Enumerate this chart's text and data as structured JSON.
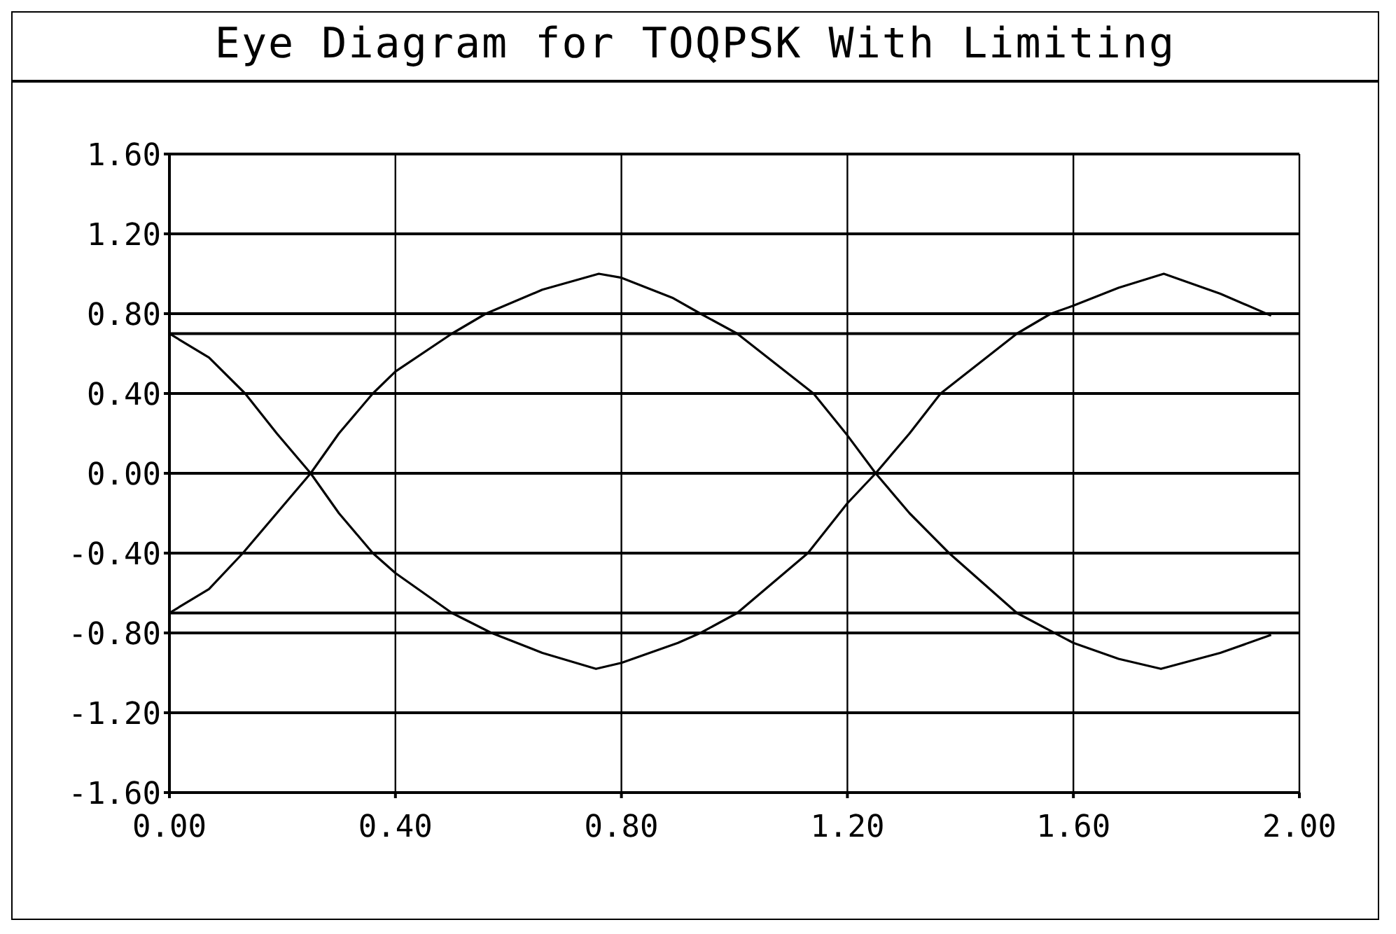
{
  "chart_data": {
    "type": "line",
    "title": "Eye Diagram for TOQPSK With Limiting",
    "xlim": [
      0,
      2
    ],
    "xticks": [
      {
        "value": 0,
        "label": "0.00"
      },
      {
        "value": 0.4,
        "label": "0.40"
      },
      {
        "value": 0.8,
        "label": "0.80"
      },
      {
        "value": 1.2,
        "label": "1.20"
      },
      {
        "value": 1.6,
        "label": "1.60"
      },
      {
        "value": 2,
        "label": "2.00"
      }
    ],
    "ylim": [
      -1.6,
      1.6
    ],
    "yticks": [
      {
        "value": -1.6,
        "label": "-1.60"
      },
      {
        "value": -1.2,
        "label": "-1.20"
      },
      {
        "value": -0.8,
        "label": "-0.80"
      },
      {
        "value": -0.4,
        "label": "-0.40"
      },
      {
        "value": 0,
        "label": "0.00"
      },
      {
        "value": 0.4,
        "label": "0.40"
      },
      {
        "value": 0.8,
        "label": "0.80"
      },
      {
        "value": 1.2,
        "label": "1.20"
      },
      {
        "value": 1.6,
        "label": "1.60"
      }
    ],
    "grid": true,
    "ref_lines": [
      {
        "axis": "y",
        "value": 0.7,
        "color": "#000000"
      },
      {
        "axis": "y",
        "value": -0.7,
        "color": "#000000"
      }
    ],
    "series": [
      {
        "color": "#000000",
        "x": [
          0,
          0.07,
          0.134,
          0.19,
          0.25,
          0.3,
          0.36,
          0.4,
          0.5,
          0.57,
          0.66,
          0.755,
          0.8,
          0.9,
          0.94,
          1.005,
          1.13,
          1.2,
          1.25,
          1.31,
          1.365,
          1.5,
          1.56,
          1.6,
          1.68,
          1.76,
          1.86,
          1.95
        ],
        "values": [
          0.7,
          0.58,
          0.4,
          0.2,
          0,
          -0.2,
          -0.4,
          -0.5,
          -0.7,
          -0.8,
          -0.9,
          -0.98,
          -0.95,
          -0.85,
          -0.8,
          -0.7,
          -0.4,
          -0.15,
          0,
          0.2,
          0.4,
          0.7,
          0.8,
          0.84,
          0.93,
          1,
          0.9,
          0.79
        ]
      },
      {
        "color": "#000000",
        "x": [
          0,
          0.07,
          0.13,
          0.19,
          0.25,
          0.3,
          0.36,
          0.4,
          0.5,
          0.56,
          0.66,
          0.76,
          0.8,
          0.89,
          0.94,
          1.005,
          1.14,
          1.2,
          1.25,
          1.31,
          1.38,
          1.5,
          1.6,
          1.68,
          1.755,
          1.86,
          1.95
        ],
        "values": [
          -0.7,
          -0.58,
          -0.4,
          -0.2,
          0,
          0.2,
          0.4,
          0.51,
          0.7,
          0.8,
          0.92,
          1,
          0.98,
          0.88,
          0.8,
          0.7,
          0.4,
          0.19,
          0,
          -0.2,
          -0.4,
          -0.7,
          -0.85,
          -0.93,
          -0.98,
          -0.9,
          -0.81
        ]
      }
    ]
  }
}
